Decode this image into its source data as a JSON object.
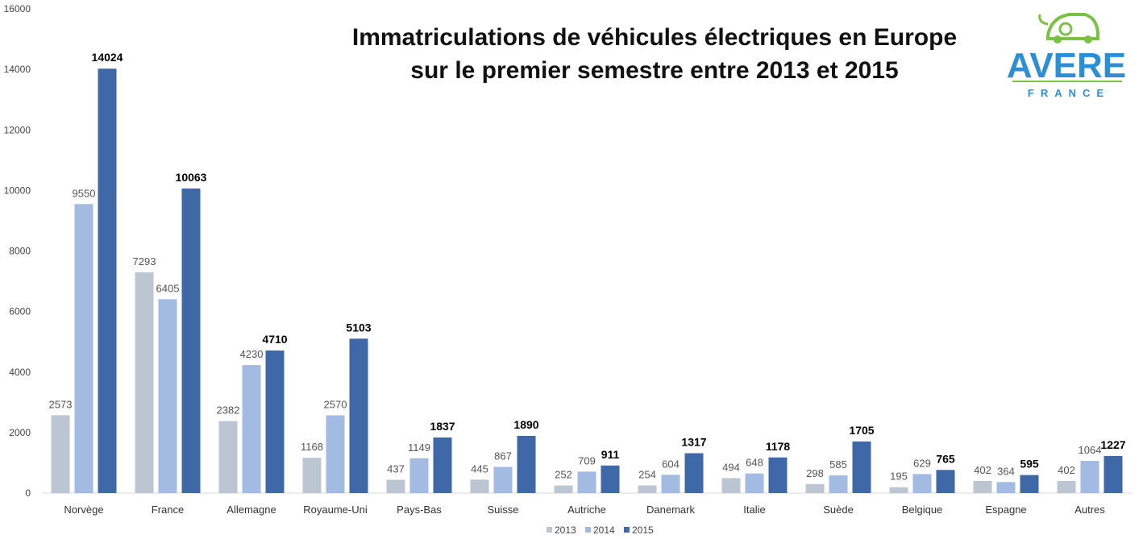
{
  "logo": {
    "brand": "AVERE",
    "country": "FRANCE",
    "colors": {
      "text": "#2c8fd6",
      "accent": "#7cc242"
    }
  },
  "chart_data": {
    "type": "bar",
    "title_lines": [
      "Immatriculations de véhicules électriques en Europe",
      "sur le premier semestre entre 2013 et 2015"
    ],
    "categories": [
      "Norvège",
      "France",
      "Allemagne",
      "Royaume-Uni",
      "Pays-Bas",
      "Suisse",
      "Autriche",
      "Danemark",
      "Italie",
      "Suède",
      "Belgique",
      "Espagne",
      "Autres"
    ],
    "series": [
      {
        "name": "2013",
        "color": "#bcc6d3",
        "values": [
          2573,
          7293,
          2382,
          1168,
          437,
          445,
          252,
          254,
          494,
          298,
          195,
          402,
          402
        ]
      },
      {
        "name": "2014",
        "color": "#a3bbe3",
        "values": [
          9550,
          6405,
          4230,
          2570,
          1149,
          867,
          709,
          604,
          648,
          585,
          629,
          364,
          1064
        ]
      },
      {
        "name": "2015",
        "color": "#3f68a8",
        "values": [
          14024,
          10063,
          4710,
          5103,
          1837,
          1890,
          911,
          1317,
          1178,
          1705,
          765,
          595,
          1227
        ]
      }
    ],
    "y_ticks": [
      0,
      2000,
      4000,
      6000,
      8000,
      10000,
      12000,
      14000,
      16000
    ],
    "ylim": [
      0,
      16000
    ],
    "grid": false,
    "legend_position": "bottom-center",
    "xlabel": "",
    "ylabel": ""
  }
}
